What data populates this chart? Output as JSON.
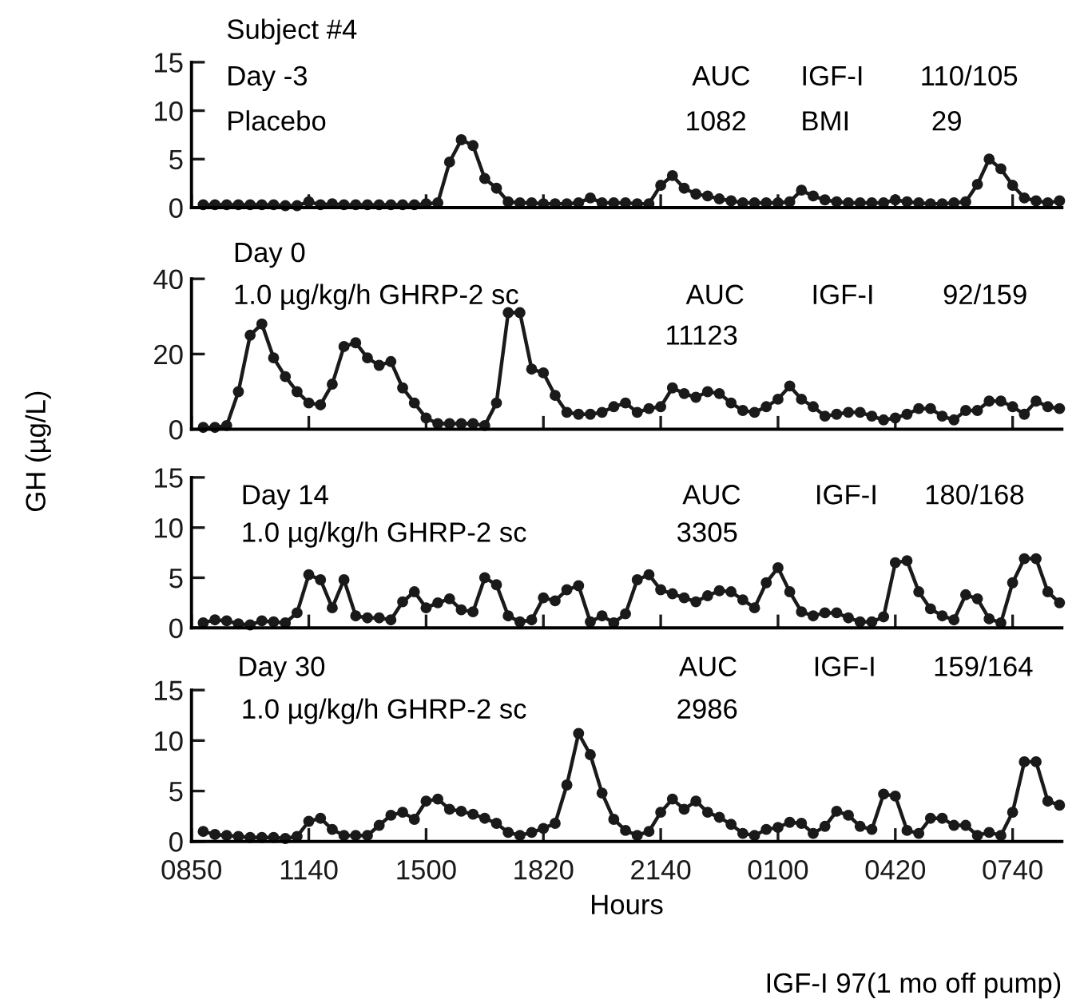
{
  "chart_data": [
    {
      "type": "line",
      "title": "Subject #4",
      "annotations": [
        "Day -3",
        "Placebo",
        "AUC",
        "1082",
        "IGF-I",
        "BMI",
        "110/105",
        "29"
      ],
      "marker": "circle",
      "line_style": "solid",
      "tick_labels": "y",
      "ylim": [
        0,
        15
      ],
      "yticks": [
        0,
        5,
        10,
        15
      ],
      "categories": [
        "0850",
        null,
        null,
        null,
        null,
        null,
        null,
        null,
        null,
        null,
        "1140",
        null,
        null,
        null,
        null,
        null,
        null,
        null,
        null,
        null,
        "1500",
        null,
        null,
        null,
        null,
        null,
        null,
        null,
        null,
        null,
        "1820",
        null,
        null,
        null,
        null,
        null,
        null,
        null,
        null,
        null,
        "2140",
        null,
        null,
        null,
        null,
        null,
        null,
        null,
        null,
        null,
        "0100",
        null,
        null,
        null,
        null,
        null,
        null,
        null,
        null,
        null,
        "0420",
        null,
        null,
        null,
        null,
        null,
        null,
        null,
        null,
        null,
        "0740",
        null,
        null,
        null,
        null
      ],
      "series": [
        {
          "color": "#1a1a1a",
          "values": [
            null,
            0.3,
            0.3,
            0.3,
            0.3,
            0.3,
            0.3,
            0.3,
            0.2,
            0.2,
            0.6,
            0.3,
            0.4,
            0.3,
            0.3,
            0.3,
            0.3,
            0.3,
            0.3,
            0.3,
            0.4,
            0.5,
            4.7,
            7.0,
            6.4,
            3.0,
            2.0,
            0.6,
            0.5,
            0.5,
            0.4,
            0.4,
            0.4,
            0.5,
            1.0,
            0.5,
            0.5,
            0.5,
            0.4,
            0.4,
            2.3,
            3.3,
            2.0,
            1.4,
            1.2,
            0.9,
            0.7,
            0.5,
            0.5,
            0.5,
            0.5,
            0.6,
            1.8,
            1.2,
            0.8,
            0.6,
            0.5,
            0.5,
            0.5,
            0.5,
            0.8,
            0.6,
            0.5,
            0.4,
            0.4,
            0.5,
            0.6,
            2.4,
            5.0,
            4.0,
            2.3,
            1.0,
            0.7,
            0.5,
            0.7
          ]
        }
      ]
    },
    {
      "type": "line",
      "ylabel": "GH (µg/L)",
      "annotations": [
        "Day 0",
        "1.0 µg/kg/h GHRP-2 sc",
        "AUC",
        "11123",
        "IGF-I",
        "92/159"
      ],
      "marker": "circle",
      "line_style": "solid",
      "tick_labels": "y",
      "ylim": [
        0,
        40
      ],
      "yticks": [
        0,
        20,
        40
      ],
      "categories": [
        "0850",
        null,
        null,
        null,
        null,
        null,
        null,
        null,
        null,
        null,
        "1140",
        null,
        null,
        null,
        null,
        null,
        null,
        null,
        null,
        null,
        "1500",
        null,
        null,
        null,
        null,
        null,
        null,
        null,
        null,
        null,
        "1820",
        null,
        null,
        null,
        null,
        null,
        null,
        null,
        null,
        null,
        "2140",
        null,
        null,
        null,
        null,
        null,
        null,
        null,
        null,
        null,
        "0100",
        null,
        null,
        null,
        null,
        null,
        null,
        null,
        null,
        null,
        "0420",
        null,
        null,
        null,
        null,
        null,
        null,
        null,
        null,
        null,
        "0740",
        null,
        null,
        null,
        null
      ],
      "series": [
        {
          "color": "#1a1a1a",
          "values": [
            null,
            0.5,
            0.5,
            1.0,
            10,
            25,
            28,
            19,
            14,
            10,
            7,
            6.5,
            12,
            22,
            23,
            19,
            17,
            18,
            11,
            7,
            3,
            1.5,
            1.5,
            1.5,
            1.5,
            1.0,
            7,
            31,
            31,
            16,
            15,
            9,
            4.5,
            4,
            4,
            4.5,
            6,
            7,
            4.5,
            5.5,
            6,
            11,
            9.5,
            8.5,
            10,
            9.5,
            7,
            5,
            4.5,
            6,
            8,
            11.5,
            8,
            6,
            3.5,
            4,
            4.5,
            4.5,
            3.5,
            2.5,
            3,
            4,
            5.5,
            5.5,
            3.5,
            2.5,
            5,
            5,
            7.5,
            7.5,
            6,
            4,
            7.5,
            6,
            5.5
          ]
        }
      ]
    },
    {
      "type": "line",
      "annotations": [
        "Day 14",
        "1.0 µg/kg/h GHRP-2 sc",
        "AUC",
        "3305",
        "IGF-I",
        "180/168"
      ],
      "marker": "circle",
      "line_style": "solid",
      "tick_labels": "y",
      "ylim": [
        0,
        15
      ],
      "yticks": [
        0,
        5,
        10,
        15
      ],
      "categories": [
        "0850",
        null,
        null,
        null,
        null,
        null,
        null,
        null,
        null,
        null,
        "1140",
        null,
        null,
        null,
        null,
        null,
        null,
        null,
        null,
        null,
        "1500",
        null,
        null,
        null,
        null,
        null,
        null,
        null,
        null,
        null,
        "1820",
        null,
        null,
        null,
        null,
        null,
        null,
        null,
        null,
        null,
        "2140",
        null,
        null,
        null,
        null,
        null,
        null,
        null,
        null,
        null,
        "0100",
        null,
        null,
        null,
        null,
        null,
        null,
        null,
        null,
        null,
        "0420",
        null,
        null,
        null,
        null,
        null,
        null,
        null,
        null,
        null,
        "0740",
        null,
        null,
        null,
        null
      ],
      "series": [
        {
          "color": "#1a1a1a",
          "values": [
            null,
            0.5,
            0.8,
            0.7,
            0.4,
            0.3,
            0.7,
            0.6,
            0.5,
            1.5,
            5.3,
            4.8,
            2.0,
            4.8,
            1.2,
            1.0,
            1.0,
            0.8,
            2.6,
            3.6,
            2.0,
            2.5,
            2.9,
            1.8,
            1.6,
            5.0,
            4.3,
            1.2,
            0.6,
            0.8,
            3.0,
            2.7,
            3.8,
            4.2,
            0.6,
            1.2,
            0.5,
            1.4,
            4.8,
            5.3,
            3.8,
            3.4,
            3.0,
            2.6,
            3.2,
            3.7,
            3.6,
            2.8,
            2.0,
            4.5,
            6.0,
            3.6,
            1.6,
            1.2,
            1.5,
            1.5,
            1.0,
            0.6,
            0.6,
            1.1,
            6.5,
            6.7,
            3.6,
            1.9,
            1.2,
            0.8,
            3.3,
            2.9,
            0.9,
            0.5,
            4.5,
            6.9,
            6.9,
            3.6,
            2.5
          ]
        }
      ]
    },
    {
      "type": "line",
      "xlabel": "Hours",
      "annotations": [
        "Day 30",
        "1.0 µg/kg/h GHRP-2 sc",
        "AUC",
        "2986",
        "IGF-I",
        "159/164",
        "IGF-I 97(1 mo off pump)"
      ],
      "marker": "circle",
      "line_style": "solid",
      "ylim": [
        0,
        15
      ],
      "yticks": [
        0,
        5,
        10,
        15
      ],
      "categories": [
        "0850",
        null,
        null,
        null,
        null,
        null,
        null,
        null,
        null,
        null,
        "1140",
        null,
        null,
        null,
        null,
        null,
        null,
        null,
        null,
        null,
        "1500",
        null,
        null,
        null,
        null,
        null,
        null,
        null,
        null,
        null,
        "1820",
        null,
        null,
        null,
        null,
        null,
        null,
        null,
        null,
        null,
        "2140",
        null,
        null,
        null,
        null,
        null,
        null,
        null,
        null,
        null,
        "0100",
        null,
        null,
        null,
        null,
        null,
        null,
        null,
        null,
        null,
        "0420",
        null,
        null,
        null,
        null,
        null,
        null,
        null,
        null,
        null,
        "0740",
        null,
        null,
        null,
        null
      ],
      "series": [
        {
          "color": "#1a1a1a",
          "values": [
            null,
            1.0,
            0.7,
            0.6,
            0.5,
            0.4,
            0.4,
            0.4,
            0.3,
            0.5,
            2.0,
            2.3,
            1.2,
            0.6,
            0.6,
            0.6,
            1.6,
            2.6,
            2.9,
            2.2,
            4.0,
            4.2,
            3.2,
            3.0,
            2.7,
            2.3,
            1.8,
            0.9,
            0.6,
            0.9,
            1.3,
            1.8,
            5.6,
            10.7,
            8.6,
            4.8,
            2.2,
            1.1,
            0.6,
            1.0,
            2.9,
            4.2,
            3.2,
            4.0,
            2.9,
            2.4,
            1.7,
            0.8,
            0.6,
            1.2,
            1.4,
            1.9,
            1.8,
            0.8,
            1.5,
            3.0,
            2.6,
            1.5,
            1.2,
            4.7,
            4.5,
            1.1,
            0.8,
            2.3,
            2.3,
            1.6,
            1.6,
            0.6,
            0.9,
            0.6,
            2.9,
            7.9,
            7.9,
            4.0,
            3.6
          ]
        }
      ]
    }
  ]
}
